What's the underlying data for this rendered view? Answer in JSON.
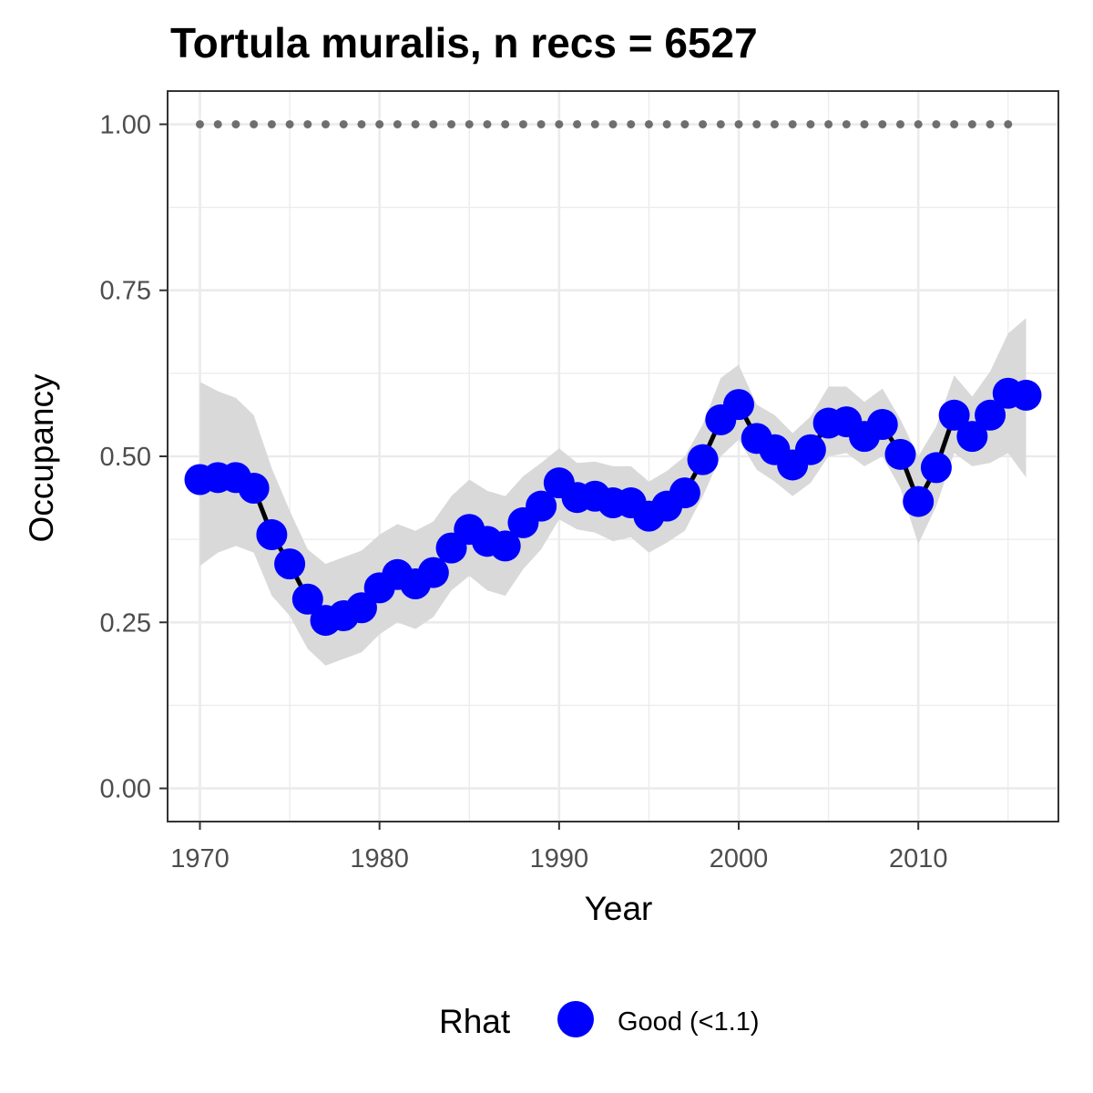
{
  "chart_data": {
    "type": "line",
    "title": "Tortula muralis, n recs = 6527",
    "xlabel": "Year",
    "ylabel": "Occupancy",
    "xlim": [
      1968.2,
      2017.8
    ],
    "ylim": [
      -0.05,
      1.05
    ],
    "x_ticks": [
      1970,
      1980,
      1990,
      2000,
      2010
    ],
    "x_tick_labels": [
      "1970",
      "1980",
      "1990",
      "2000",
      "2010"
    ],
    "y_ticks": [
      0,
      0.25,
      0.5,
      0.75,
      1
    ],
    "y_tick_labels": [
      "0.00",
      "0.25",
      "0.50",
      "0.75",
      "1.00"
    ],
    "x_minor_ticks": [
      1975,
      1985,
      1995,
      2005,
      2015
    ],
    "y_minor_ticks": [
      0.125,
      0.375,
      0.625,
      0.875
    ],
    "grid": true,
    "colors": {
      "points": "#0000ff",
      "line": "#000000",
      "ribbon": "#d9d9d9",
      "reference_dots": "#6e6e6e",
      "grid": "#ebebeb",
      "panel_border": "#333333"
    },
    "series": [
      {
        "x": [
          1970,
          1971,
          1972,
          1973,
          1974,
          1975,
          1976,
          1977,
          1978,
          1979,
          1980,
          1981,
          1982,
          1983,
          1984,
          1985,
          1986,
          1987,
          1988,
          1989,
          1990,
          1991,
          1992,
          1993,
          1994,
          1995,
          1996,
          1997,
          1998,
          1999,
          2000,
          2001,
          2002,
          2003,
          2004,
          2005,
          2006,
          2007,
          2008,
          2009,
          2010,
          2011,
          2012,
          2013,
          2014,
          2015,
          2016
        ],
        "values": [
          0.465,
          0.468,
          0.468,
          0.452,
          0.382,
          0.338,
          0.285,
          0.253,
          0.26,
          0.272,
          0.302,
          0.322,
          0.308,
          0.325,
          0.362,
          0.39,
          0.372,
          0.365,
          0.4,
          0.425,
          0.46,
          0.438,
          0.44,
          0.43,
          0.43,
          0.41,
          0.425,
          0.445,
          0.495,
          0.555,
          0.578,
          0.527,
          0.51,
          0.487,
          0.51,
          0.55,
          0.552,
          0.53,
          0.548,
          0.503,
          0.432,
          0.483,
          0.562,
          0.53,
          0.562,
          0.595,
          0.592
        ],
        "lower": [
          0.335,
          0.355,
          0.365,
          0.355,
          0.29,
          0.26,
          0.21,
          0.185,
          0.195,
          0.205,
          0.232,
          0.25,
          0.24,
          0.258,
          0.298,
          0.32,
          0.298,
          0.29,
          0.33,
          0.36,
          0.405,
          0.39,
          0.385,
          0.372,
          0.378,
          0.355,
          0.37,
          0.388,
          0.44,
          0.5,
          0.525,
          0.48,
          0.462,
          0.44,
          0.46,
          0.5,
          0.505,
          0.485,
          0.5,
          0.452,
          0.368,
          0.425,
          0.505,
          0.485,
          0.49,
          0.505,
          0.468
        ],
        "upper": [
          0.612,
          0.598,
          0.588,
          0.562,
          0.482,
          0.418,
          0.36,
          0.338,
          0.348,
          0.358,
          0.382,
          0.398,
          0.388,
          0.402,
          0.44,
          0.465,
          0.448,
          0.44,
          0.47,
          0.49,
          0.512,
          0.49,
          0.492,
          0.485,
          0.485,
          0.462,
          0.478,
          0.5,
          0.548,
          0.618,
          0.638,
          0.578,
          0.562,
          0.535,
          0.56,
          0.605,
          0.605,
          0.582,
          0.602,
          0.556,
          0.5,
          0.545,
          0.622,
          0.59,
          0.628,
          0.685,
          0.708
        ]
      }
    ],
    "reference_line": {
      "y": 1.0,
      "x_start": 1970,
      "x_end": 2015
    },
    "legend": {
      "title": "Rhat",
      "placement": "bottom",
      "items": [
        {
          "label": "Good (<1.1)",
          "color": "#0000ff"
        }
      ]
    }
  }
}
